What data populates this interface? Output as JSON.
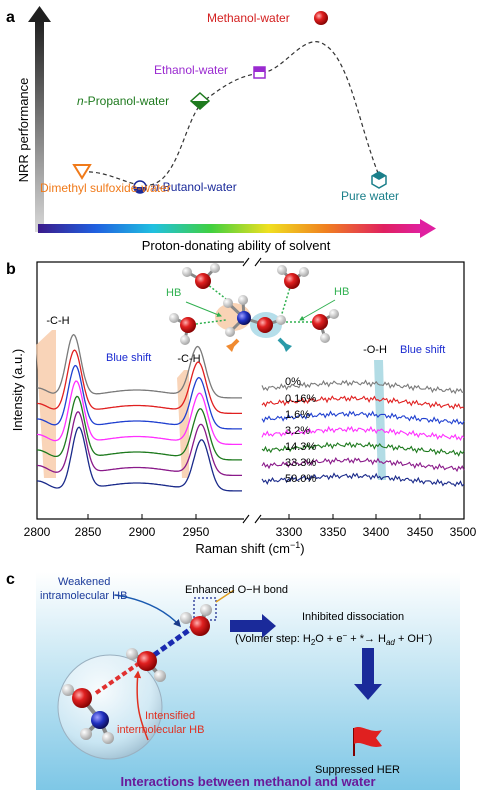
{
  "panel_a": {
    "label": "a",
    "ylabel": "NRR performance",
    "xlabel": "Proton-donating ability of solvent",
    "points": [
      {
        "name": "Dimethyl sulfoxide-water",
        "label": "Dimethyl sulfoxide-water",
        "color": "#f07a1a"
      },
      {
        "name": "n-Butanol-water",
        "prefix": "n",
        "label": "-Butanol-water",
        "color": "#1a2a9a"
      },
      {
        "name": "n-Propanol-water",
        "prefix": "n",
        "label": "-Propanol-water",
        "color": "#1e7a1e"
      },
      {
        "name": "Ethanol-water",
        "label": "Ethanol-water",
        "color": "#9a2ad0"
      },
      {
        "name": "Methanol-water",
        "label": "Methanol-water",
        "color": "#d42020"
      },
      {
        "name": "Pure water",
        "label": "Pure water",
        "color": "#1a7f8a"
      }
    ]
  },
  "panel_b": {
    "label": "b",
    "ylabel": "Intensity (a.u.)",
    "xlabel": "Raman shift (cm",
    "xlabel_sup": "−1",
    "xlabel_end": ")",
    "xticks_left": [
      "2800",
      "2850",
      "2900",
      "2950"
    ],
    "xticks_right": [
      "3300",
      "3350",
      "3400",
      "3450",
      "3500"
    ],
    "peak_labels": [
      "-C-H",
      "-C-H",
      "-O-H"
    ],
    "blue_shift": "Blue shift",
    "hb": "HB",
    "concentrations": [
      "0%",
      "0.16%",
      "1.6%",
      "3.2%",
      "14.3%",
      "33.3%",
      "50.0%"
    ],
    "series_colors": [
      "#7a7a7a",
      "#e02020",
      "#2040d0",
      "#ff30ff",
      "#1e7a1e",
      "#8a1a8a",
      "#1a2a8a"
    ]
  },
  "panel_c": {
    "label": "c",
    "weakened": [
      "Weakened",
      "intramolecular HB"
    ],
    "enhanced": "Enhanced O−H bond",
    "intensified": [
      "Intensified",
      "intermolecular HB"
    ],
    "inhibited": "Inhibited dissociation",
    "volmer": "(Volmer step: H",
    "suppressed": "Suppressed HER",
    "caption": "Interactions between methanol and water"
  },
  "chart_data": [
    {
      "type": "line",
      "title": "",
      "xlabel": "Proton-donating ability of solvent",
      "ylabel": "NRR performance",
      "categories": [
        "Dimethyl sulfoxide-water",
        "n-Butanol-water",
        "n-Propanol-water",
        "Ethanol-water",
        "Methanol-water",
        "Pure water"
      ],
      "values": [
        0.07,
        0.17,
        0.57,
        0.73,
        0.97,
        0.2
      ]
    },
    {
      "type": "line",
      "xlabel": "Raman shift (cm−1)",
      "ylabel": "Intensity (a.u.)",
      "xlim": [
        2800,
        3500
      ],
      "series": [
        {
          "name": "0%"
        },
        {
          "name": "0.16%"
        },
        {
          "name": "1.6%"
        },
        {
          "name": "3.2%"
        },
        {
          "name": "14.3%"
        },
        {
          "name": "33.3%"
        },
        {
          "name": "50.0%"
        }
      ]
    }
  ]
}
